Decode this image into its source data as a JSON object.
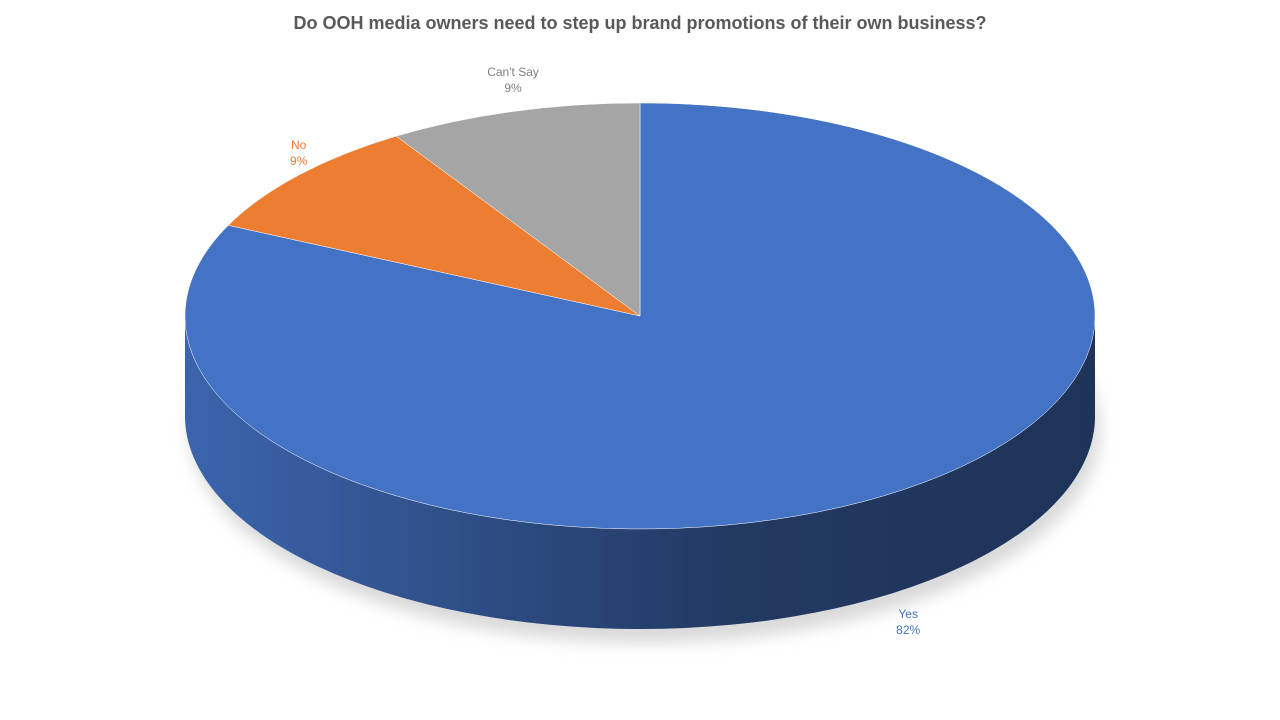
{
  "chart_data": {
    "type": "pie",
    "title": "Do OOH media owners need to step up brand promotions of their own business?",
    "categories": [
      "Yes",
      "No",
      "Can't Say"
    ],
    "values": [
      82,
      9,
      9
    ],
    "value_labels": [
      "82%",
      "9%",
      "9%"
    ],
    "colors": [
      "#4472c4",
      "#ed7d31",
      "#a5a5a5"
    ]
  }
}
